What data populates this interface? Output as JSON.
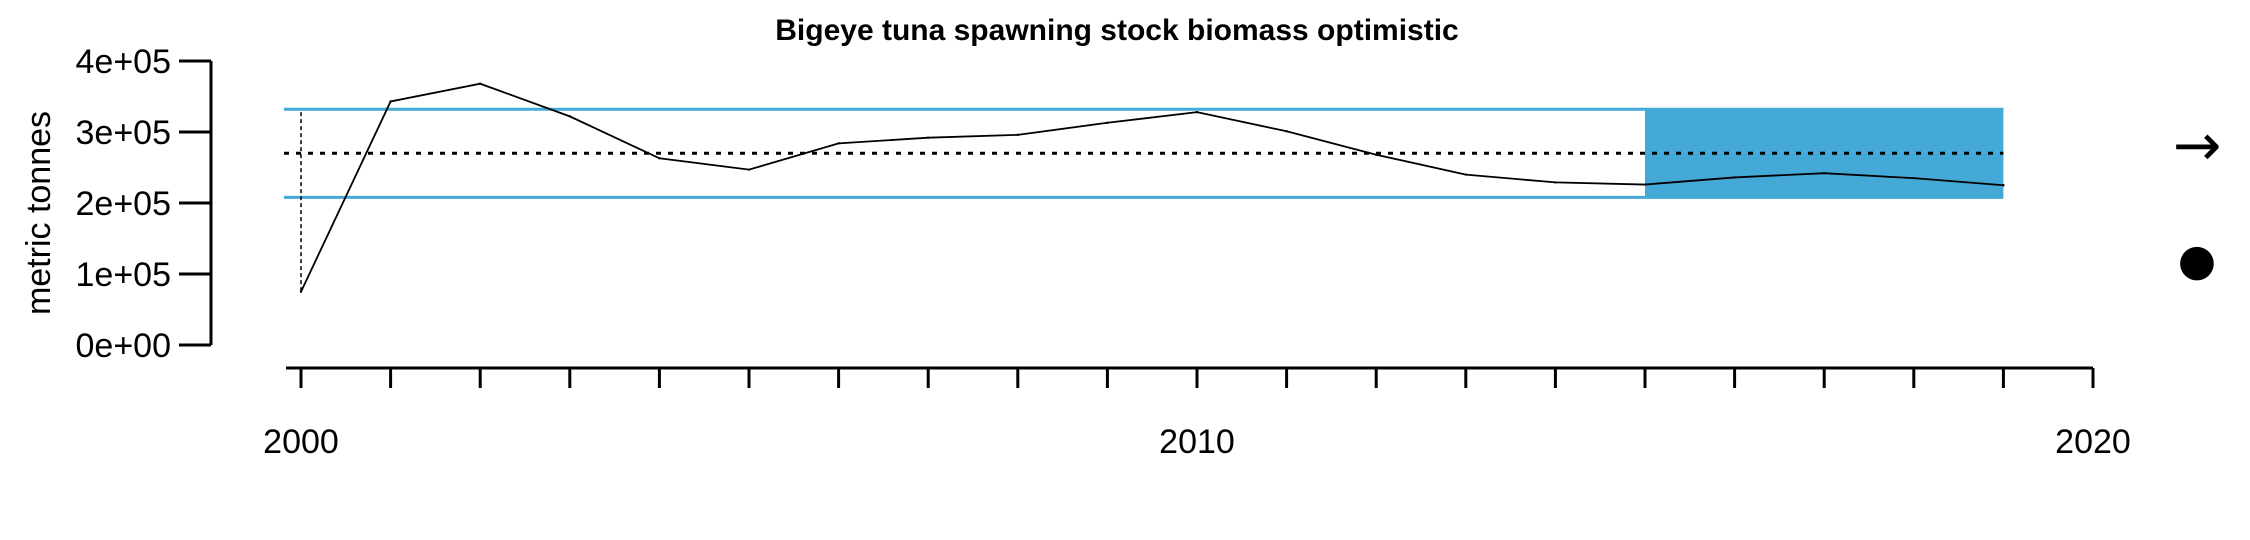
{
  "chart_data": {
    "type": "line",
    "title": "Bigeye tuna spawning stock biomass optimistic",
    "ylabel": "metric tonnes",
    "xlabel": "",
    "ylim": [
      0,
      400000
    ],
    "yticks": [
      "0e+00",
      "1e+05",
      "2e+05",
      "3e+05",
      "4e+05"
    ],
    "ytick_values": [
      0,
      100000,
      200000,
      300000,
      400000
    ],
    "xlim": [
      2000,
      2020
    ],
    "xticks_labeled": [
      "2000",
      "2010",
      "2020"
    ],
    "xtick_label_values": [
      2000,
      2010,
      2020
    ],
    "xticks_minor": [
      2000,
      2001,
      2002,
      2003,
      2004,
      2005,
      2006,
      2007,
      2008,
      2009,
      2010,
      2011,
      2012,
      2013,
      2014,
      2015,
      2016,
      2017,
      2018,
      2019,
      2020
    ],
    "series": [
      {
        "x": [
          2000,
          2001,
          2002,
          2003,
          2004,
          2005,
          2006,
          2007,
          2008,
          2009,
          2010,
          2011,
          2012,
          2013,
          2014,
          2015,
          2016,
          2017,
          2018,
          2019
        ],
        "values": [
          75000,
          343000,
          368000,
          322000,
          263000,
          247000,
          284000,
          292000,
          296000,
          313000,
          328000,
          301000,
          268000,
          240000,
          229000,
          226000,
          236000,
          242000,
          235000,
          225000
        ]
      }
    ],
    "mean_line": 270000,
    "band_lines": {
      "upper": 332000,
      "lower": 208000,
      "color": "#44a9d6"
    },
    "highlight_period": {
      "x_start": 2015,
      "x_end": 2019,
      "y_low": 208000,
      "y_high": 332000,
      "color": "#44a9d6"
    },
    "first_year_range": {
      "x": 2000,
      "y_low": 75000,
      "y_high": 328000
    },
    "indicators": {
      "trend": "→",
      "status": "●"
    }
  }
}
